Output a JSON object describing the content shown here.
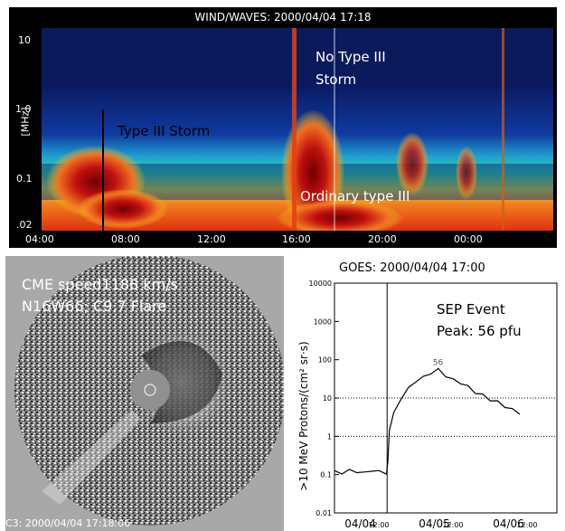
{
  "spectrogram": {
    "title": "WIND/WAVES: 2000/04/04 17:18",
    "ylabel": "[MHz]",
    "y_ticks": [
      "10",
      "1.0",
      "0.1",
      ".02"
    ],
    "x_ticks": [
      "04:00",
      "08:00",
      "12:00",
      "16:00",
      "20:00",
      "00:00"
    ],
    "annotations": {
      "type3_storm": "Type III Storm",
      "no_type3_storm_line1": "No Type III",
      "no_type3_storm_line2": "Storm",
      "ordinary_type3": "Ordinary type III"
    },
    "colors": {
      "background": "#000000",
      "low": "#0a2a8a",
      "mid": "#1ec8c0",
      "high": "#d8e020",
      "peak": "#c01010"
    }
  },
  "coronagraph": {
    "label_line1": "CME speed1188 km/s",
    "label_line2": "N16W66; C9.7 Flare",
    "caption": "C3: 2000/04/04 17:18:06"
  },
  "chart_data": {
    "type": "line",
    "title": "GOES: 2000/04/04 17:00",
    "ylabel": ">10 MeV Protons/(cm² sr·s)",
    "y_scale": "log",
    "ylim": [
      0.01,
      10000
    ],
    "y_ticks": [
      "10000",
      "1000",
      "100",
      "10",
      "1",
      "0.1",
      "0.01"
    ],
    "x_ticks": [
      "04/04",
      "12:00",
      "04/05",
      "12:00",
      "04/06",
      "12:00"
    ],
    "peak_label": "56",
    "annotation_line1": "SEP Event",
    "annotation_line2": "Peak: 56 pfu",
    "event_marker": "04/04 17:00",
    "reference_lines": [
      1,
      10
    ],
    "series": [
      {
        "x": [
          0,
          0.1,
          0.2,
          0.3,
          0.4,
          0.5,
          0.6,
          0.7,
          0.72,
          0.74,
          0.8,
          0.9,
          1.0,
          1.1,
          1.2,
          1.3,
          1.4,
          1.5,
          1.6,
          1.7,
          1.8,
          1.9,
          2.0,
          2.1,
          2.2,
          2.3,
          2.4,
          2.5
        ],
        "values": [
          0.12,
          0.11,
          0.13,
          0.12,
          0.11,
          0.13,
          0.12,
          0.11,
          0.2,
          1.5,
          4,
          10,
          18,
          28,
          35,
          45,
          56,
          38,
          30,
          25,
          20,
          14,
          12,
          9,
          8,
          6,
          5,
          4
        ]
      }
    ]
  }
}
